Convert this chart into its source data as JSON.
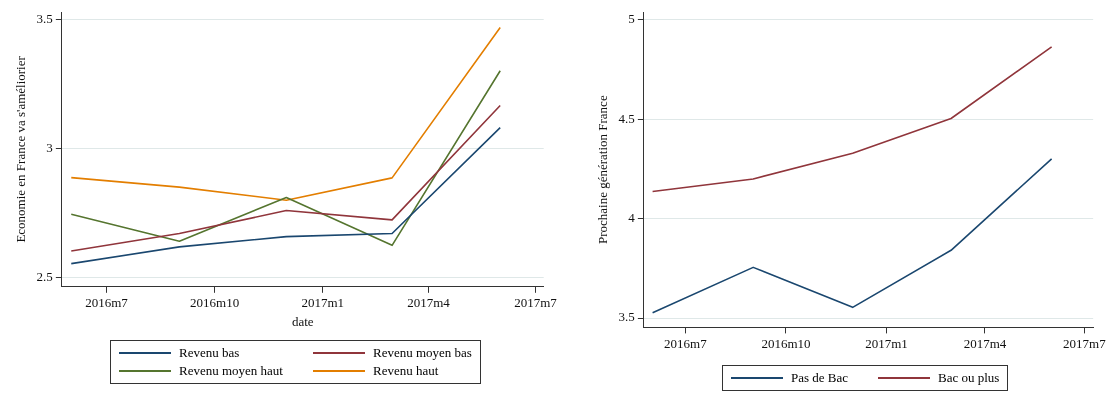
{
  "chart_data": [
    {
      "type": "line",
      "ylabel": "Economie en France va s'améliorier",
      "xlabel": "date",
      "x": [
        "2016-06",
        "2016-09",
        "2016-12",
        "2017-03",
        "2017-06"
      ],
      "series": [
        {
          "name": "Revenu bas",
          "color": "#1a476f",
          "values": [
            2.553,
            2.618,
            2.658,
            2.67,
            3.081
          ]
        },
        {
          "name": "Revenu moyen bas",
          "color": "#90353b",
          "values": [
            2.602,
            2.67,
            2.759,
            2.723,
            3.167
          ]
        },
        {
          "name": "Revenu moyen haut",
          "color": "#55752f",
          "values": [
            2.745,
            2.64,
            2.81,
            2.624,
            3.302
          ]
        },
        {
          "name": "Revenu haut",
          "color": "#e37e00",
          "values": [
            2.887,
            2.85,
            2.799,
            2.886,
            3.47
          ]
        }
      ],
      "xlim": [
        "2016-05-24",
        "2017-07-08"
      ],
      "xticks": [
        {
          "value": "2016-07",
          "label": "2016m7"
        },
        {
          "value": "2016-10",
          "label": "2016m10"
        },
        {
          "value": "2017-01",
          "label": "2017m1"
        },
        {
          "value": "2017-04",
          "label": "2017m4"
        },
        {
          "value": "2017-07",
          "label": "2017m7"
        }
      ],
      "ylim": [
        2.463,
        3.53
      ],
      "yticks": [
        2.5,
        3,
        3.5
      ],
      "grid": "y",
      "legend": "bottom",
      "marker": "none"
    },
    {
      "type": "line",
      "ylabel": "Prochaine génération France",
      "x": [
        "2016-06",
        "2016-09",
        "2016-12",
        "2017-03",
        "2017-06"
      ],
      "series": [
        {
          "name": "Pas de Bac",
          "color": "#1a476f",
          "values": [
            3.527,
            3.755,
            3.554,
            3.841,
            4.301
          ]
        },
        {
          "name": "Bac ou plus",
          "color": "#90353b",
          "values": [
            4.137,
            4.2,
            4.329,
            4.504,
            4.865
          ]
        }
      ],
      "xlim": [
        "2016-05-24",
        "2017-07-09"
      ],
      "xticks": [
        {
          "value": "2016-07",
          "label": "2016m7"
        },
        {
          "value": "2016-10",
          "label": "2016m10"
        },
        {
          "value": "2017-01",
          "label": "2017m1"
        },
        {
          "value": "2017-04",
          "label": "2017m4"
        },
        {
          "value": "2017-07",
          "label": "2017m7"
        }
      ],
      "ylim": [
        3.453,
        5.04
      ],
      "yticks": [
        3.5,
        4,
        4.5,
        5
      ],
      "grid": "y",
      "legend": "bottom",
      "marker": "none"
    }
  ]
}
